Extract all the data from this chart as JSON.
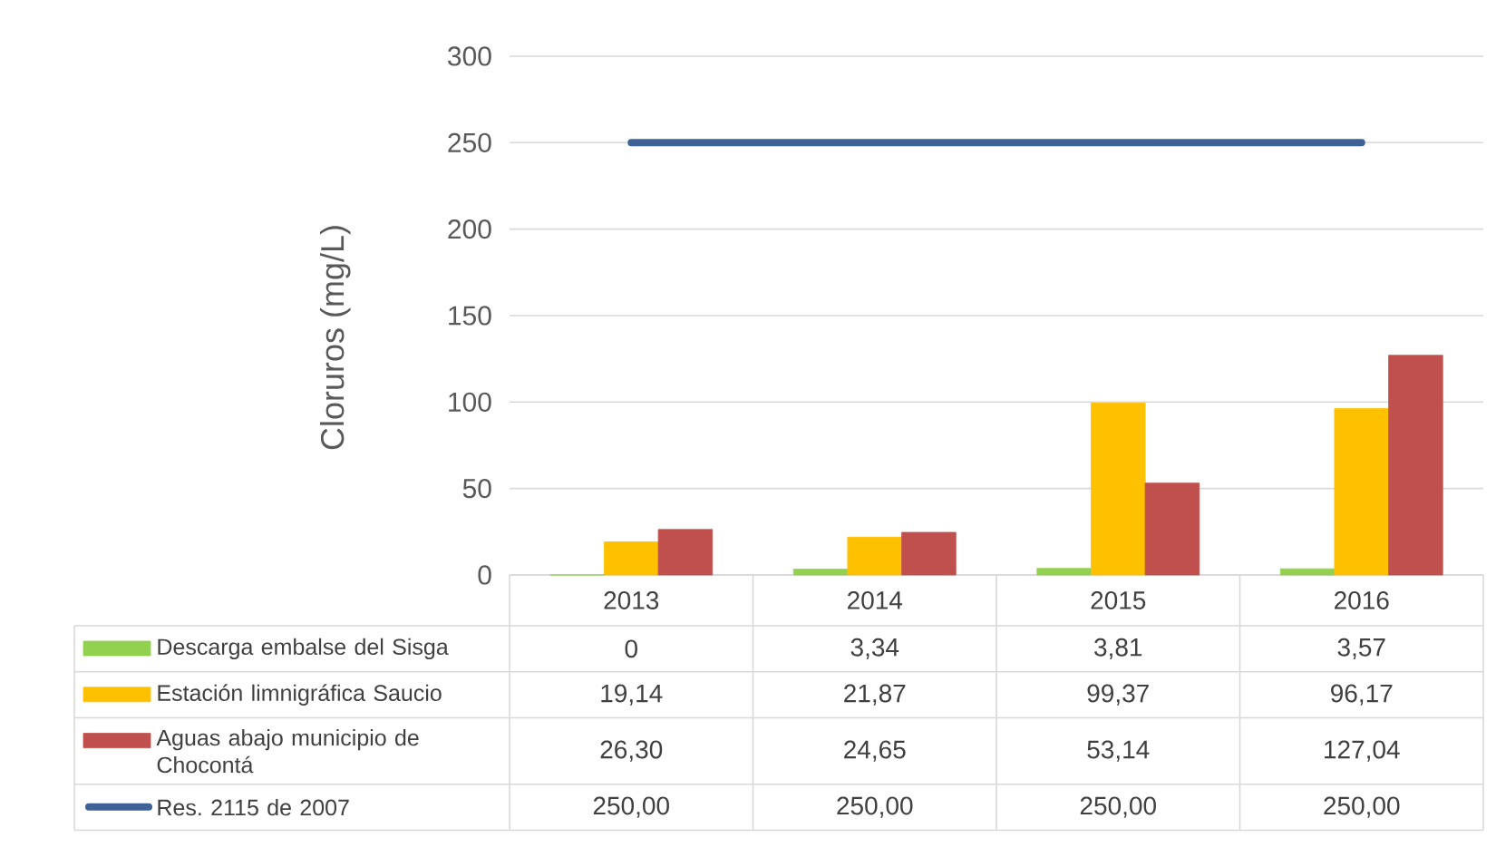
{
  "chart_data": {
    "type": "bar",
    "ylabel": "Cloruros (mg/L)",
    "categories": [
      "2013",
      "2014",
      "2015",
      "2016"
    ],
    "series": [
      {
        "name": "Descarga embalse del Sisga",
        "color": "#92d050",
        "values": [
          0,
          3.34,
          3.81,
          3.57
        ],
        "value_labels": [
          "0",
          "3,34",
          "3,81",
          "3,57"
        ]
      },
      {
        "name": "Estación limnigráfica Saucio",
        "color": "#ffc000",
        "values": [
          19.14,
          21.87,
          99.37,
          96.17
        ],
        "value_labels": [
          "19,14",
          "21,87",
          "99,37",
          "96,17"
        ]
      },
      {
        "name": "Aguas abajo municipio de Chocontá",
        "color": "#c0504d",
        "values": [
          26.3,
          24.65,
          53.14,
          127.04
        ],
        "value_labels": [
          "26,30",
          "24,65",
          "53,14",
          "127,04"
        ]
      },
      {
        "name": "Res. 2115 de 2007",
        "type": "line",
        "color": "#3f6296",
        "values": [
          250,
          250,
          250,
          250
        ],
        "value_labels": [
          "250,00",
          "250,00",
          "250,00",
          "250,00"
        ]
      }
    ],
    "ylim": [
      0,
      300
    ],
    "yticks": [
      0,
      50,
      100,
      150,
      200,
      250,
      300
    ],
    "grid": "y",
    "legend": "bottom"
  }
}
